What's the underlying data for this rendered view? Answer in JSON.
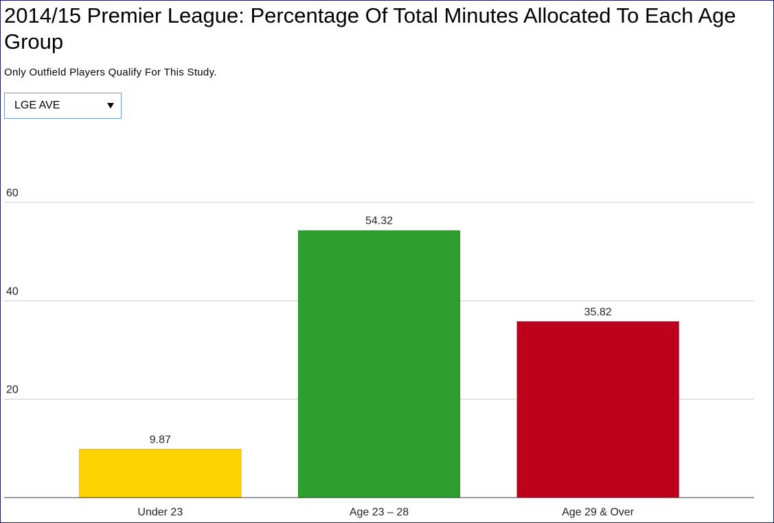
{
  "chart_data": {
    "type": "bar",
    "title": "2014/15 Premier League: Percentage Of Total Minutes Allocated To Each Age Group",
    "subtitle": "Only Outfield Players Qualify For This Study.",
    "categories": [
      "Under 23",
      "Age 23 – 28",
      "Age 29 & Over"
    ],
    "values": [
      9.87,
      54.32,
      35.82
    ],
    "colors": [
      "#fcd200",
      "#2e9f2e",
      "#bd001c"
    ],
    "ylim": [
      0,
      60
    ],
    "yticks": [
      20,
      40,
      60
    ],
    "grid": true
  },
  "controls": {
    "dropdown": "LGE AVE"
  }
}
